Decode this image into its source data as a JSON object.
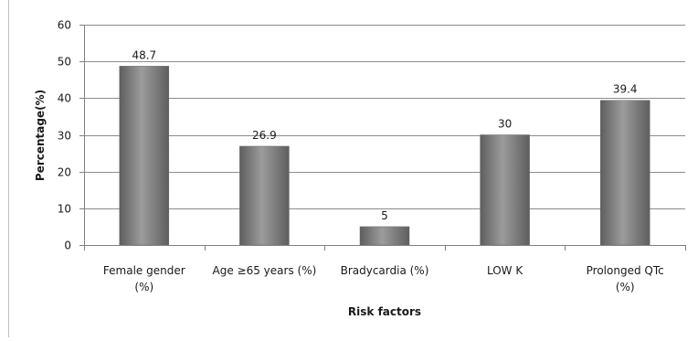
{
  "chart_data": {
    "type": "bar",
    "title": "",
    "xlabel": "Risk factors",
    "ylabel": "Percentage(%)",
    "ylim": [
      0,
      60
    ],
    "yticks": [
      0,
      10,
      20,
      30,
      40,
      50,
      60
    ],
    "grid": true,
    "legend": "none",
    "categories": [
      [
        "Female gender",
        "(%)"
      ],
      [
        "Age ≥65 years (%)"
      ],
      [
        "Bradycardia (%)"
      ],
      [
        "LOW K"
      ],
      [
        "Prolonged QTc",
        "(%)"
      ]
    ],
    "values": [
      48.7,
      26.9,
      5,
      30,
      39.4
    ],
    "value_labels": [
      "48.7",
      "26.9",
      "5",
      "30",
      "39.4"
    ],
    "colors": {
      "bar": "#808080",
      "bar_dark": "#5e5e5e",
      "bar_light": "#9c9c9c",
      "grid": "#8c8c8c",
      "axis": "#808080"
    }
  }
}
